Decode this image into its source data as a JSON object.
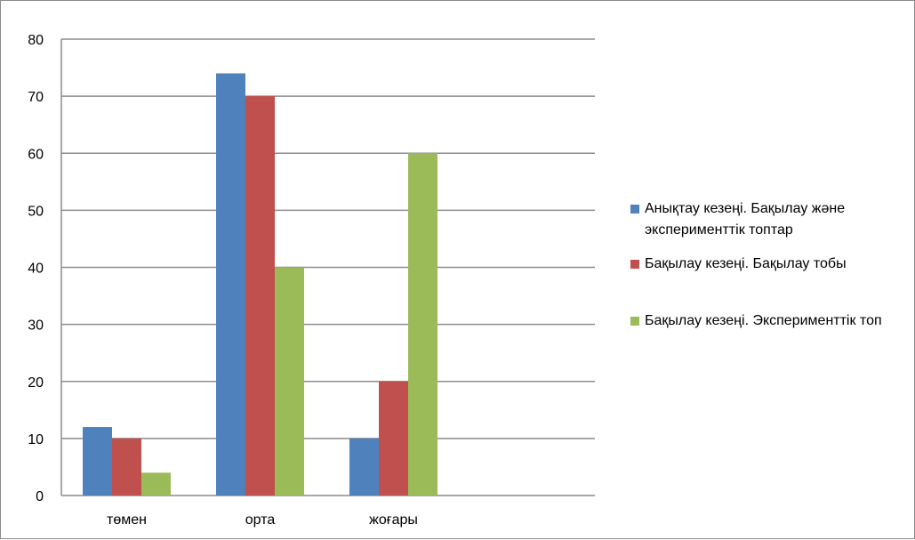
{
  "chart_data": {
    "type": "bar",
    "categories": [
      "төмен",
      "орта",
      "жоғары"
    ],
    "series": [
      {
        "name": "Анықтау кезеңі. Бақылау және эксперименттік топтар",
        "color": "#4f81bd",
        "values": [
          12,
          74,
          10
        ]
      },
      {
        "name": "Бақылау кезеңі. Бақылау тобы",
        "color": "#c0504d",
        "values": [
          10,
          70,
          20
        ]
      },
      {
        "name": "Бақылау кезеңі. Эксперименттік топ",
        "color": "#9bbb59",
        "values": [
          4,
          40,
          60
        ]
      }
    ],
    "yticks": [
      "0",
      "10",
      "20",
      "30",
      "40",
      "50",
      "60",
      "70",
      "80"
    ],
    "ylim": [
      0,
      80
    ],
    "grid": true,
    "legend_position": "right"
  }
}
